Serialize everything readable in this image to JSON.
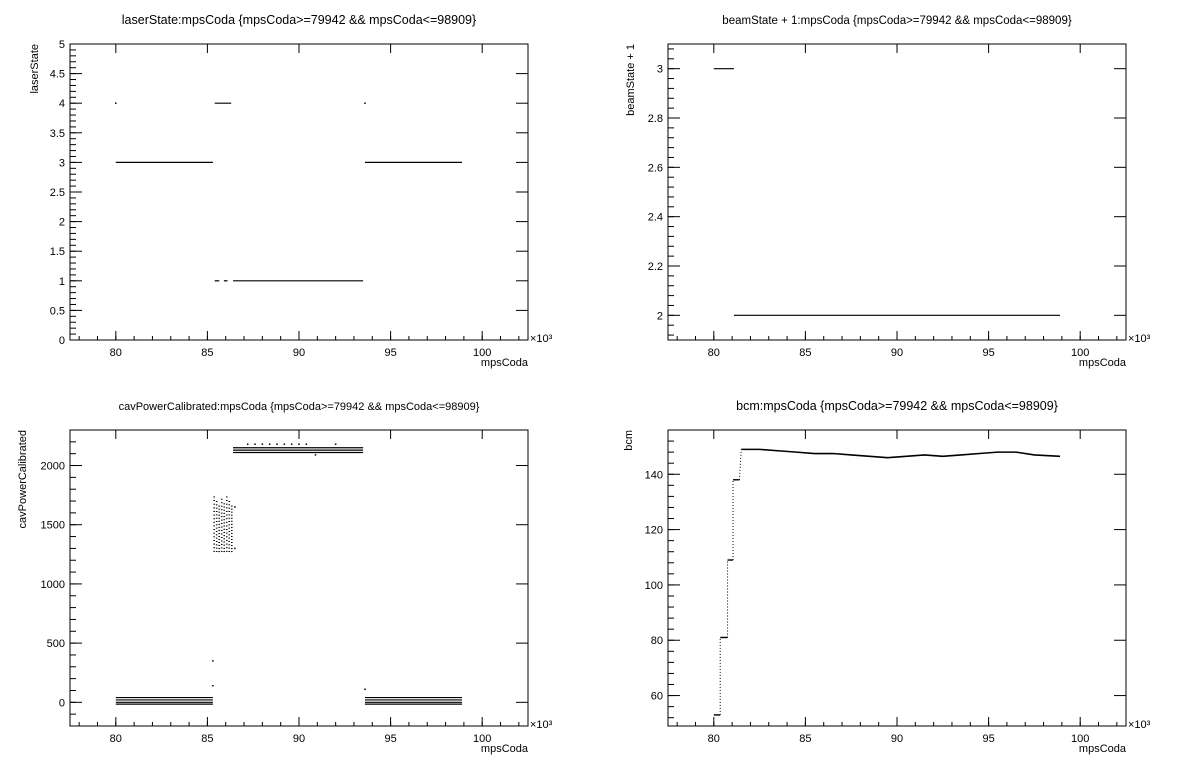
{
  "chart_data": [
    {
      "type": "scatter",
      "title": "laserState:mpsCoda {mpsCoda>=79942 && mpsCoda<=98909}",
      "xlabel": "mpsCoda",
      "ylabel": "laserState",
      "x_exponent_label": "×10³",
      "xlim": [
        77.5,
        102.5
      ],
      "ylim": [
        0,
        5
      ],
      "x_ticks": [
        80,
        85,
        90,
        95,
        100
      ],
      "x_tick_labels": [
        "80",
        "85",
        "90",
        "95",
        "100"
      ],
      "y_ticks": [
        0,
        0.5,
        1,
        1.5,
        2,
        2.5,
        3,
        3.5,
        4,
        4.5,
        5
      ],
      "y_tick_labels": [
        "0",
        "0.5",
        "1",
        "1.5",
        "2",
        "2.5",
        "3",
        "3.5",
        "4",
        "4.5",
        "5"
      ],
      "segments": [
        {
          "x0": 80.0,
          "x1": 85.3,
          "y": 3
        },
        {
          "x0": 93.6,
          "x1": 98.9,
          "y": 3
        },
        {
          "x0": 85.4,
          "x1": 86.3,
          "y": 4
        },
        {
          "x0": 85.4,
          "x1": 85.65,
          "y": 1
        },
        {
          "x0": 85.9,
          "x1": 86.1,
          "y": 1
        },
        {
          "x0": 86.4,
          "x1": 93.5,
          "y": 1
        }
      ],
      "points": [
        {
          "x": 80.0,
          "y": 4
        },
        {
          "x": 93.6,
          "y": 4
        }
      ]
    },
    {
      "type": "scatter",
      "title": "beamState + 1:mpsCoda {mpsCoda>=79942 && mpsCoda<=98909}",
      "xlabel": "mpsCoda",
      "ylabel": "beamState + 1",
      "x_exponent_label": "×10³",
      "xlim": [
        77.5,
        102.5
      ],
      "ylim": [
        1.9,
        3.1
      ],
      "x_ticks": [
        80,
        85,
        90,
        95,
        100
      ],
      "x_tick_labels": [
        "80",
        "85",
        "90",
        "95",
        "100"
      ],
      "y_ticks": [
        2,
        2.2,
        2.4,
        2.6,
        2.8,
        3
      ],
      "y_tick_labels": [
        "2",
        "2.2",
        "2.4",
        "2.6",
        "2.8",
        "3"
      ],
      "segments": [
        {
          "x0": 80.0,
          "x1": 81.1,
          "y": 3
        },
        {
          "x0": 81.1,
          "x1": 98.9,
          "y": 2
        }
      ],
      "points": []
    },
    {
      "type": "scatter",
      "title": "cavPowerCalibrated:mpsCoda {mpsCoda>=79942 && mpsCoda<=98909}",
      "xlabel": "mpsCoda",
      "ylabel": "cavPowerCalibrated",
      "x_exponent_label": "×10³",
      "xlim": [
        77.5,
        102.5
      ],
      "ylim": [
        -200,
        2300
      ],
      "x_ticks": [
        80,
        85,
        90,
        95,
        100
      ],
      "x_tick_labels": [
        "80",
        "85",
        "90",
        "95",
        "100"
      ],
      "y_ticks": [
        0,
        500,
        1000,
        1500,
        2000
      ],
      "y_tick_labels": [
        "0",
        "500",
        "1000",
        "1500",
        "2000"
      ],
      "segments": [
        {
          "x0": 80.0,
          "x1": 85.3,
          "y": 40
        },
        {
          "x0": 80.0,
          "x1": 85.3,
          "y": 20
        },
        {
          "x0": 80.0,
          "x1": 85.3,
          "y": 0
        },
        {
          "x0": 80.0,
          "x1": 85.3,
          "y": -15
        },
        {
          "x0": 93.6,
          "x1": 98.9,
          "y": 40
        },
        {
          "x0": 93.6,
          "x1": 98.9,
          "y": 20
        },
        {
          "x0": 93.6,
          "x1": 98.9,
          "y": 0
        },
        {
          "x0": 93.6,
          "x1": 98.9,
          "y": -15
        },
        {
          "x0": 86.4,
          "x1": 93.5,
          "y": 2150
        },
        {
          "x0": 86.4,
          "x1": 93.5,
          "y": 2130
        },
        {
          "x0": 86.4,
          "x1": 93.5,
          "y": 2110
        }
      ],
      "points": [
        {
          "x": 85.3,
          "y": 350
        },
        {
          "x": 85.3,
          "y": 140
        },
        {
          "x": 93.6,
          "y": 110
        },
        {
          "x": 86.5,
          "y": 1650
        },
        {
          "x": 86.5,
          "y": 1300
        },
        {
          "x": 87.2,
          "y": 2180
        },
        {
          "x": 87.6,
          "y": 2180
        },
        {
          "x": 88.0,
          "y": 2180
        },
        {
          "x": 88.4,
          "y": 2180
        },
        {
          "x": 88.8,
          "y": 2180
        },
        {
          "x": 89.2,
          "y": 2180
        },
        {
          "x": 89.6,
          "y": 2180
        },
        {
          "x": 90.0,
          "y": 2180
        },
        {
          "x": 90.4,
          "y": 2180
        },
        {
          "x": 90.9,
          "y": 2090
        },
        {
          "x": 92.0,
          "y": 2180
        }
      ],
      "dense_region": {
        "x0": 85.3,
        "x1": 86.4,
        "y0": 1260,
        "y1": 1750
      }
    },
    {
      "type": "line",
      "title": "bcm:mpsCoda {mpsCoda>=79942 && mpsCoda<=98909}",
      "xlabel": "mpsCoda",
      "ylabel": "bcm",
      "x_exponent_label": "×10³",
      "xlim": [
        77.5,
        102.5
      ],
      "ylim": [
        49,
        156
      ],
      "x_ticks": [
        80,
        85,
        90,
        95,
        100
      ],
      "x_tick_labels": [
        "80",
        "85",
        "90",
        "95",
        "100"
      ],
      "y_ticks": [
        60,
        80,
        100,
        120,
        140
      ],
      "y_tick_labels": [
        "60",
        "80",
        "100",
        "120",
        "140"
      ],
      "steps": [
        {
          "x0": 80.0,
          "x1": 80.35,
          "y": 53
        },
        {
          "x0": 80.35,
          "x1": 80.75,
          "y": 81
        },
        {
          "x0": 80.75,
          "x1": 81.05,
          "y": 109
        },
        {
          "x0": 81.05,
          "x1": 81.4,
          "y": 138
        }
      ],
      "plateau": {
        "x": [
          81.5,
          82.5,
          83.5,
          84.5,
          85.5,
          86.5,
          87.5,
          88.5,
          89.5,
          90.5,
          91.5,
          92.5,
          93.5,
          94.5,
          95.5,
          96.5,
          97.5,
          98.9
        ],
        "y": [
          149,
          149,
          148.5,
          148,
          147.5,
          147.5,
          147,
          146.5,
          146,
          146.5,
          147,
          146.5,
          147,
          147.5,
          148,
          148,
          147,
          146.5
        ]
      }
    }
  ]
}
